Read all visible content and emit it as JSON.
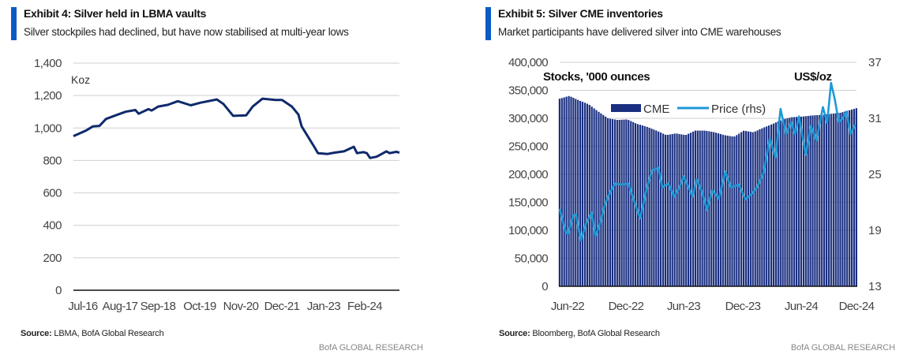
{
  "exhibits": [
    {
      "title": "Exhibit 4: Silver held in LBMA vaults",
      "subtitle": "Silver stockpiles had declined, but have now stabilised at multi-year lows",
      "source_label": "Source:",
      "source_text": "LBMA, BofA Global Research",
      "brand": "BofA GLOBAL RESEARCH"
    },
    {
      "title": "Exhibit 5: Silver CME inventories",
      "subtitle": "Market participants have delivered silver into CME warehouses",
      "source_label": "Source:",
      "source_text": "Bloomberg, BofA Global Research",
      "brand": "BofA GLOBAL RESEARCH"
    }
  ],
  "chart_data": [
    {
      "type": "line",
      "unit_label": "Koz",
      "ylim": [
        0,
        1400
      ],
      "yticks": [
        "0",
        "200",
        "400",
        "600",
        "800",
        "1,000",
        "1,200",
        "1,400"
      ],
      "xticks": [
        "Jul-16",
        "Aug-17",
        "Sep-18",
        "Oct-19",
        "Nov-20",
        "Dec-21",
        "Jan-23",
        "Feb-24"
      ],
      "xlim": [
        "2016-07",
        "2024-11"
      ],
      "grid": true,
      "line_color": "#0f2a6b",
      "series": [
        {
          "points": [
            [
              "2016-07",
              950
            ],
            [
              "2016-11",
              986
            ],
            [
              "2017-01",
              1010
            ],
            [
              "2017-03",
              1013
            ],
            [
              "2017-05",
              1056
            ],
            [
              "2017-08",
              1078
            ],
            [
              "2017-11",
              1100
            ],
            [
              "2018-02",
              1111
            ],
            [
              "2018-03",
              1088
            ],
            [
              "2018-06",
              1116
            ],
            [
              "2018-07",
              1108
            ],
            [
              "2018-09",
              1132
            ],
            [
              "2018-12",
              1143
            ],
            [
              "2019-03",
              1165
            ],
            [
              "2019-07",
              1140
            ],
            [
              "2019-10",
              1156
            ],
            [
              "2020-03",
              1176
            ],
            [
              "2020-05",
              1148
            ],
            [
              "2020-08",
              1075
            ],
            [
              "2020-12",
              1078
            ],
            [
              "2021-02",
              1132
            ],
            [
              "2021-05",
              1181
            ],
            [
              "2021-09",
              1173
            ],
            [
              "2021-11",
              1173
            ],
            [
              "2022-02",
              1132
            ],
            [
              "2022-04",
              1083
            ],
            [
              "2022-05",
              1010
            ],
            [
              "2022-09",
              880
            ],
            [
              "2022-10",
              845
            ],
            [
              "2023-01",
              840
            ],
            [
              "2023-03",
              848
            ],
            [
              "2023-06",
              856
            ],
            [
              "2023-09",
              884
            ],
            [
              "2023-10",
              845
            ],
            [
              "2023-12",
              851
            ],
            [
              "2024-01",
              845
            ],
            [
              "2024-02",
              815
            ],
            [
              "2024-04",
              823
            ],
            [
              "2024-07",
              856
            ],
            [
              "2024-08",
              845
            ],
            [
              "2024-10",
              853
            ],
            [
              "2024-11",
              848
            ]
          ]
        }
      ]
    },
    {
      "type": "bar+line",
      "left_unit_label": "Stocks, '000 ounces",
      "right_unit_label": "US$/oz",
      "ylim": [
        0,
        400000
      ],
      "yticks": [
        "0",
        "50,000",
        "100,000",
        "150,000",
        "200,000",
        "250,000",
        "300,000",
        "350,000",
        "400,000"
      ],
      "y2lim": [
        13,
        37
      ],
      "y2ticks": [
        "13",
        "19",
        "25",
        "31",
        "37"
      ],
      "xticks": [
        "Jun-22",
        "Dec-22",
        "Jun-23",
        "Dec-23",
        "Jun-24",
        "Dec-24"
      ],
      "xlim": [
        "2022-06-01",
        "2024-12-20"
      ],
      "grid": true,
      "legend": {
        "placement": "top-center",
        "entries": [
          "CME",
          "Price (rhs)"
        ]
      },
      "series": [
        {
          "name": "CME",
          "type": "bar",
          "color": "#1a2f80",
          "points": [
            [
              "2022-06-01",
              335000
            ],
            [
              "2022-07-01",
              340000
            ],
            [
              "2022-08-01",
              332000
            ],
            [
              "2022-09-01",
              325000
            ],
            [
              "2022-10-01",
              312000
            ],
            [
              "2022-11-01",
              300000
            ],
            [
              "2022-12-01",
              297000
            ],
            [
              "2023-01-01",
              298000
            ],
            [
              "2023-02-01",
              290000
            ],
            [
              "2023-03-01",
              285000
            ],
            [
              "2023-04-01",
              278000
            ],
            [
              "2023-05-01",
              270000
            ],
            [
              "2023-06-01",
              273000
            ],
            [
              "2023-07-01",
              270000
            ],
            [
              "2023-08-01",
              278000
            ],
            [
              "2023-09-01",
              278000
            ],
            [
              "2023-10-01",
              275000
            ],
            [
              "2023-11-01",
              270000
            ],
            [
              "2023-12-01",
              267000
            ],
            [
              "2024-01-01",
              278000
            ],
            [
              "2024-02-01",
              275000
            ],
            [
              "2024-03-01",
              283000
            ],
            [
              "2024-04-01",
              290000
            ],
            [
              "2024-05-01",
              298000
            ],
            [
              "2024-06-01",
              302000
            ],
            [
              "2024-07-01",
              303000
            ],
            [
              "2024-08-01",
              305000
            ],
            [
              "2024-09-01",
              306000
            ],
            [
              "2024-10-01",
              308000
            ],
            [
              "2024-11-01",
              310000
            ],
            [
              "2024-12-20",
              318000
            ]
          ]
        },
        {
          "name": "Price (rhs)",
          "type": "line",
          "axis": "right",
          "color": "#1e9ad6",
          "points": [
            [
              "2022-06-01",
              21.3
            ],
            [
              "2022-06-19",
              18.9
            ],
            [
              "2022-06-27",
              18.6
            ],
            [
              "2022-07-13",
              20.6
            ],
            [
              "2022-07-22",
              20.7
            ],
            [
              "2022-08-07",
              17.9
            ],
            [
              "2022-08-24",
              19.8
            ],
            [
              "2022-09-10",
              20.9
            ],
            [
              "2022-09-22",
              18.4
            ],
            [
              "2022-10-04",
              19.5
            ],
            [
              "2022-10-21",
              21.7
            ],
            [
              "2022-11-07",
              23.1
            ],
            [
              "2022-11-23",
              24.0
            ],
            [
              "2022-12-10",
              23.9
            ],
            [
              "2023-01-04",
              24.0
            ],
            [
              "2023-01-20",
              22.3
            ],
            [
              "2023-02-10",
              20.3
            ],
            [
              "2023-03-01",
              23.6
            ],
            [
              "2023-03-17",
              25.4
            ],
            [
              "2023-04-07",
              25.7
            ],
            [
              "2023-04-19",
              23.6
            ],
            [
              "2023-05-07",
              24.0
            ],
            [
              "2023-05-26",
              22.6
            ],
            [
              "2023-06-13",
              23.7
            ],
            [
              "2023-06-25",
              24.8
            ],
            [
              "2023-07-10",
              23.6
            ],
            [
              "2023-07-23",
              22.6
            ],
            [
              "2023-08-05",
              24.5
            ],
            [
              "2023-08-22",
              23.1
            ],
            [
              "2023-09-07",
              21.2
            ],
            [
              "2023-09-24",
              23.3
            ],
            [
              "2023-10-14",
              22.4
            ],
            [
              "2023-11-04",
              25.3
            ],
            [
              "2023-11-21",
              23.6
            ],
            [
              "2023-12-16",
              23.9
            ],
            [
              "2024-01-06",
              22.3
            ],
            [
              "2024-01-26",
              22.9
            ],
            [
              "2024-02-12",
              23.6
            ],
            [
              "2024-03-02",
              25.1
            ],
            [
              "2024-03-22",
              28.8
            ],
            [
              "2024-04-09",
              26.8
            ],
            [
              "2024-04-25",
              32.0
            ],
            [
              "2024-05-12",
              29.3
            ],
            [
              "2024-05-28",
              30.6
            ],
            [
              "2024-06-10",
              29.3
            ],
            [
              "2024-06-22",
              31.2
            ],
            [
              "2024-07-13",
              27.1
            ],
            [
              "2024-07-29",
              30.2
            ],
            [
              "2024-08-16",
              28.6
            ],
            [
              "2024-09-06",
              32.2
            ],
            [
              "2024-09-19",
              30.5
            ],
            [
              "2024-10-01",
              34.8
            ],
            [
              "2024-10-13",
              33.0
            ],
            [
              "2024-10-25",
              30.6
            ],
            [
              "2024-11-07",
              31.0
            ],
            [
              "2024-11-19",
              31.7
            ],
            [
              "2024-12-01",
              29.3
            ],
            [
              "2024-12-16",
              30.3
            ]
          ]
        }
      ]
    }
  ]
}
